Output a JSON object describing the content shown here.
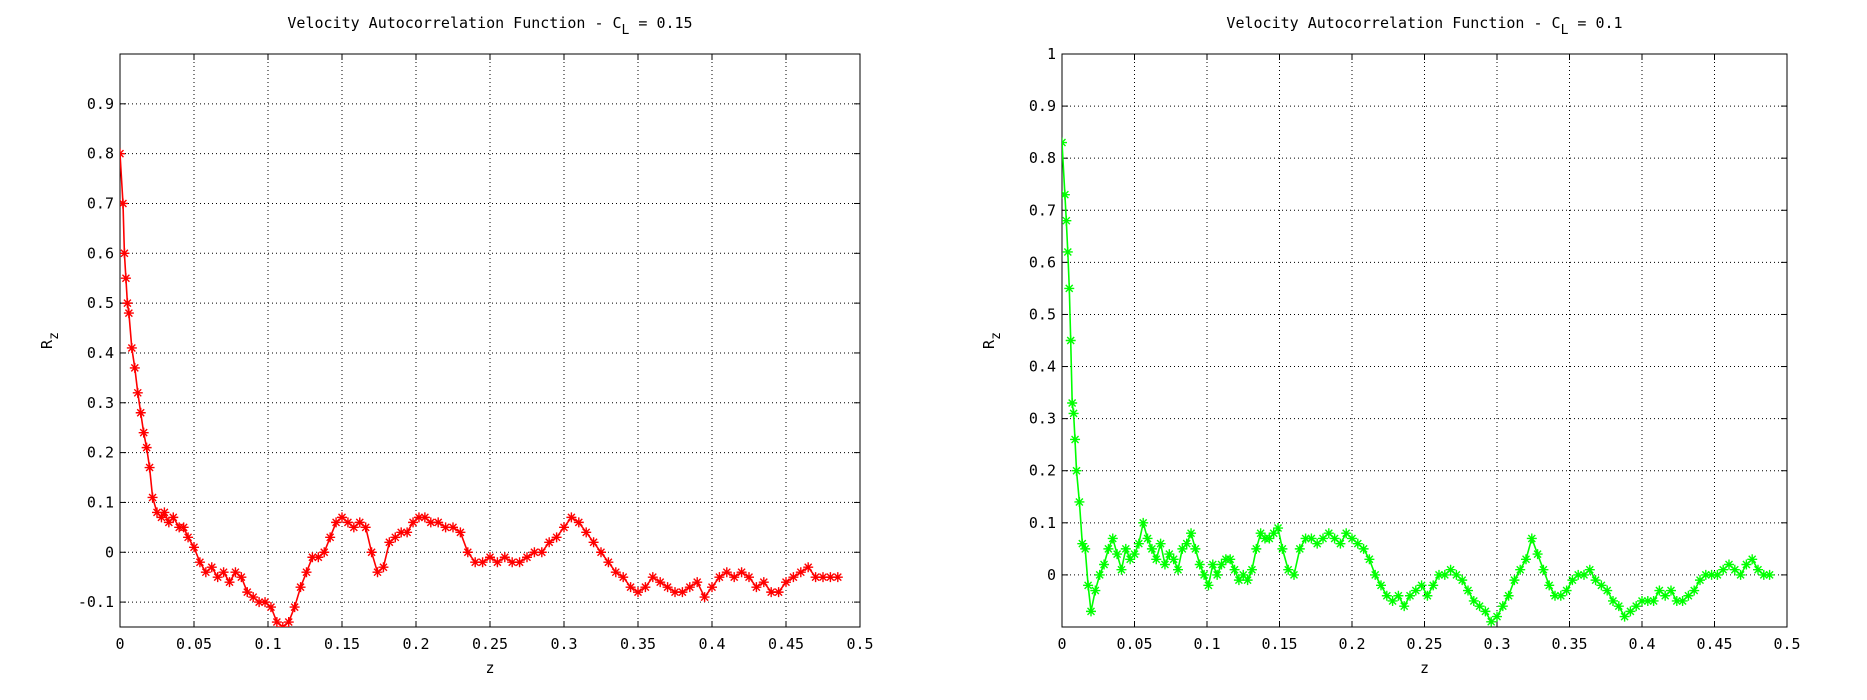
{
  "chart_data": [
    {
      "type": "line",
      "title": "Velocity Autocorrelation Function - C",
      "title_sub": "L",
      "title_suffix": " = 0.15",
      "xlabel": "z",
      "ylabel": "R",
      "ylabel_sub": "z",
      "xlim": [
        0,
        0.5
      ],
      "ylim": [
        -0.15,
        1.0
      ],
      "xticks": [
        0,
        0.05,
        0.1,
        0.15,
        0.2,
        0.25,
        0.3,
        0.35,
        0.4,
        0.45,
        0.5
      ],
      "xtick_labels": [
        "0",
        "0.05",
        "0.1",
        "0.15",
        "0.2",
        "0.25",
        "0.3",
        "0.35",
        "0.4",
        "0.45",
        "0.5"
      ],
      "yticks": [
        -0.1,
        0,
        0.1,
        0.2,
        0.3,
        0.4,
        0.5,
        0.6,
        0.7,
        0.8,
        0.9
      ],
      "ytick_labels": [
        "-0.1",
        "0",
        "0.1",
        "0.2",
        "0.3",
        "0.4",
        "0.5",
        "0.6",
        "0.7",
        "0.8",
        "0.9"
      ],
      "grid": true,
      "color": "#ff0000",
      "marker": "asterisk",
      "series": [
        {
          "x": [
            0,
            0.002,
            0.003,
            0.004,
            0.005,
            0.006,
            0.008,
            0.01,
            0.012,
            0.014,
            0.016,
            0.018,
            0.02,
            0.022,
            0.025,
            0.028,
            0.03,
            0.033,
            0.036,
            0.04,
            0.043,
            0.046,
            0.05,
            0.054,
            0.058,
            0.062,
            0.066,
            0.07,
            0.074,
            0.078,
            0.082,
            0.086,
            0.09,
            0.094,
            0.098,
            0.102,
            0.106,
            0.11,
            0.114,
            0.118,
            0.122,
            0.126,
            0.13,
            0.134,
            0.138,
            0.142,
            0.146,
            0.15,
            0.154,
            0.158,
            0.162,
            0.166,
            0.17,
            0.174,
            0.178,
            0.182,
            0.186,
            0.19,
            0.194,
            0.198,
            0.202,
            0.206,
            0.21,
            0.215,
            0.22,
            0.225,
            0.23,
            0.235,
            0.24,
            0.245,
            0.25,
            0.255,
            0.26,
            0.265,
            0.27,
            0.275,
            0.28,
            0.285,
            0.29,
            0.295,
            0.3,
            0.305,
            0.31,
            0.315,
            0.32,
            0.325,
            0.33,
            0.335,
            0.34,
            0.345,
            0.35,
            0.355,
            0.36,
            0.365,
            0.37,
            0.375,
            0.38,
            0.385,
            0.39,
            0.395,
            0.4,
            0.405,
            0.41,
            0.415,
            0.42,
            0.425,
            0.43,
            0.435,
            0.44,
            0.445,
            0.45,
            0.455,
            0.46,
            0.465,
            0.47,
            0.475,
            0.48,
            0.485
          ],
          "y": [
            0.8,
            0.7,
            0.6,
            0.55,
            0.5,
            0.48,
            0.41,
            0.37,
            0.32,
            0.28,
            0.24,
            0.21,
            0.17,
            0.11,
            0.08,
            0.07,
            0.08,
            0.06,
            0.07,
            0.05,
            0.05,
            0.03,
            0.01,
            -0.02,
            -0.04,
            -0.03,
            -0.05,
            -0.04,
            -0.06,
            -0.04,
            -0.05,
            -0.08,
            -0.09,
            -0.1,
            -0.1,
            -0.11,
            -0.14,
            -0.15,
            -0.14,
            -0.11,
            -0.07,
            -0.04,
            -0.01,
            -0.01,
            0.0,
            0.03,
            0.06,
            0.07,
            0.06,
            0.05,
            0.06,
            0.05,
            0.0,
            -0.04,
            -0.03,
            0.02,
            0.03,
            0.04,
            0.04,
            0.06,
            0.07,
            0.07,
            0.06,
            0.06,
            0.05,
            0.05,
            0.04,
            0.0,
            -0.02,
            -0.02,
            -0.01,
            -0.02,
            -0.01,
            -0.02,
            -0.02,
            -0.01,
            0.0,
            0.0,
            0.02,
            0.03,
            0.05,
            0.07,
            0.06,
            0.04,
            0.02,
            0.0,
            -0.02,
            -0.04,
            -0.05,
            -0.07,
            -0.08,
            -0.07,
            -0.05,
            -0.06,
            -0.07,
            -0.08,
            -0.08,
            -0.07,
            -0.06,
            -0.09,
            -0.07,
            -0.05,
            -0.04,
            -0.05,
            -0.04,
            -0.05,
            -0.07,
            -0.06,
            -0.08,
            -0.08,
            -0.06,
            -0.05,
            -0.04,
            -0.03,
            -0.05,
            -0.05,
            -0.05,
            -0.05
          ]
        }
      ]
    },
    {
      "type": "line",
      "title": "Velocity Autocorrelation Function - C",
      "title_sub": "L",
      "title_suffix": " = 0.1",
      "xlabel": "z",
      "ylabel": "R",
      "ylabel_sub": "z",
      "xlim": [
        0,
        0.5
      ],
      "ylim": [
        -0.1,
        1.0
      ],
      "xticks": [
        0,
        0.05,
        0.1,
        0.15,
        0.2,
        0.25,
        0.3,
        0.35,
        0.4,
        0.45,
        0.5
      ],
      "xtick_labels": [
        "0",
        "0.05",
        "0.1",
        "0.15",
        "0.2",
        "0.25",
        "0.3",
        "0.35",
        "0.4",
        "0.45",
        "0.5"
      ],
      "yticks": [
        0,
        0.1,
        0.2,
        0.3,
        0.4,
        0.5,
        0.6,
        0.7,
        0.8,
        0.9,
        1
      ],
      "ytick_labels": [
        "0",
        "0.1",
        "0.2",
        "0.3",
        "0.4",
        "0.5",
        "0.6",
        "0.7",
        "0.8",
        "0.9",
        "1"
      ],
      "grid": true,
      "color": "#00ff00",
      "marker": "asterisk",
      "series": [
        {
          "x": [
            0,
            0.002,
            0.003,
            0.004,
            0.005,
            0.006,
            0.007,
            0.008,
            0.009,
            0.01,
            0.012,
            0.014,
            0.016,
            0.018,
            0.02,
            0.023,
            0.026,
            0.029,
            0.032,
            0.035,
            0.038,
            0.041,
            0.044,
            0.047,
            0.05,
            0.053,
            0.056,
            0.059,
            0.062,
            0.065,
            0.068,
            0.071,
            0.074,
            0.077,
            0.08,
            0.083,
            0.086,
            0.089,
            0.092,
            0.095,
            0.098,
            0.101,
            0.104,
            0.107,
            0.11,
            0.113,
            0.116,
            0.119,
            0.122,
            0.125,
            0.128,
            0.131,
            0.134,
            0.137,
            0.14,
            0.143,
            0.146,
            0.149,
            0.152,
            0.156,
            0.16,
            0.164,
            0.168,
            0.172,
            0.176,
            0.18,
            0.184,
            0.188,
            0.192,
            0.196,
            0.2,
            0.204,
            0.208,
            0.212,
            0.216,
            0.22,
            0.224,
            0.228,
            0.232,
            0.236,
            0.24,
            0.244,
            0.248,
            0.252,
            0.256,
            0.26,
            0.264,
            0.268,
            0.272,
            0.276,
            0.28,
            0.284,
            0.288,
            0.292,
            0.296,
            0.3,
            0.304,
            0.308,
            0.312,
            0.316,
            0.32,
            0.324,
            0.328,
            0.332,
            0.336,
            0.34,
            0.344,
            0.348,
            0.352,
            0.356,
            0.36,
            0.364,
            0.368,
            0.372,
            0.376,
            0.38,
            0.384,
            0.388,
            0.392,
            0.396,
            0.4,
            0.404,
            0.408,
            0.412,
            0.416,
            0.42,
            0.424,
            0.428,
            0.432,
            0.436,
            0.44,
            0.444,
            0.448,
            0.452,
            0.456,
            0.46,
            0.464,
            0.468,
            0.472,
            0.476,
            0.48,
            0.484,
            0.488
          ],
          "y": [
            0.83,
            0.73,
            0.68,
            0.62,
            0.55,
            0.45,
            0.33,
            0.31,
            0.26,
            0.2,
            0.14,
            0.06,
            0.05,
            -0.02,
            -0.07,
            -0.03,
            0.0,
            0.02,
            0.05,
            0.07,
            0.04,
            0.01,
            0.05,
            0.03,
            0.04,
            0.06,
            0.1,
            0.07,
            0.05,
            0.03,
            0.06,
            0.02,
            0.04,
            0.03,
            0.01,
            0.05,
            0.06,
            0.08,
            0.05,
            0.02,
            0.0,
            -0.02,
            0.02,
            0.0,
            0.02,
            0.03,
            0.03,
            0.01,
            -0.01,
            0.0,
            -0.01,
            0.01,
            0.05,
            0.08,
            0.07,
            0.07,
            0.08,
            0.09,
            0.05,
            0.01,
            0.0,
            0.05,
            0.07,
            0.07,
            0.06,
            0.07,
            0.08,
            0.07,
            0.06,
            0.08,
            0.07,
            0.06,
            0.05,
            0.03,
            0.0,
            -0.02,
            -0.04,
            -0.05,
            -0.04,
            -0.06,
            -0.04,
            -0.03,
            -0.02,
            -0.04,
            -0.02,
            0.0,
            0.0,
            0.01,
            0.0,
            -0.01,
            -0.03,
            -0.05,
            -0.06,
            -0.07,
            -0.09,
            -0.08,
            -0.06,
            -0.04,
            -0.01,
            0.01,
            0.03,
            0.07,
            0.04,
            0.01,
            -0.02,
            -0.04,
            -0.04,
            -0.03,
            -0.01,
            0.0,
            0.0,
            0.01,
            -0.01,
            -0.02,
            -0.03,
            -0.05,
            -0.06,
            -0.08,
            -0.07,
            -0.06,
            -0.05,
            -0.05,
            -0.05,
            -0.03,
            -0.04,
            -0.03,
            -0.05,
            -0.05,
            -0.04,
            -0.03,
            -0.01,
            0.0,
            0.0,
            0.0,
            0.01,
            0.02,
            0.01,
            0.0,
            0.02,
            0.03,
            0.01,
            0.0,
            0.0
          ]
        }
      ]
    }
  ]
}
